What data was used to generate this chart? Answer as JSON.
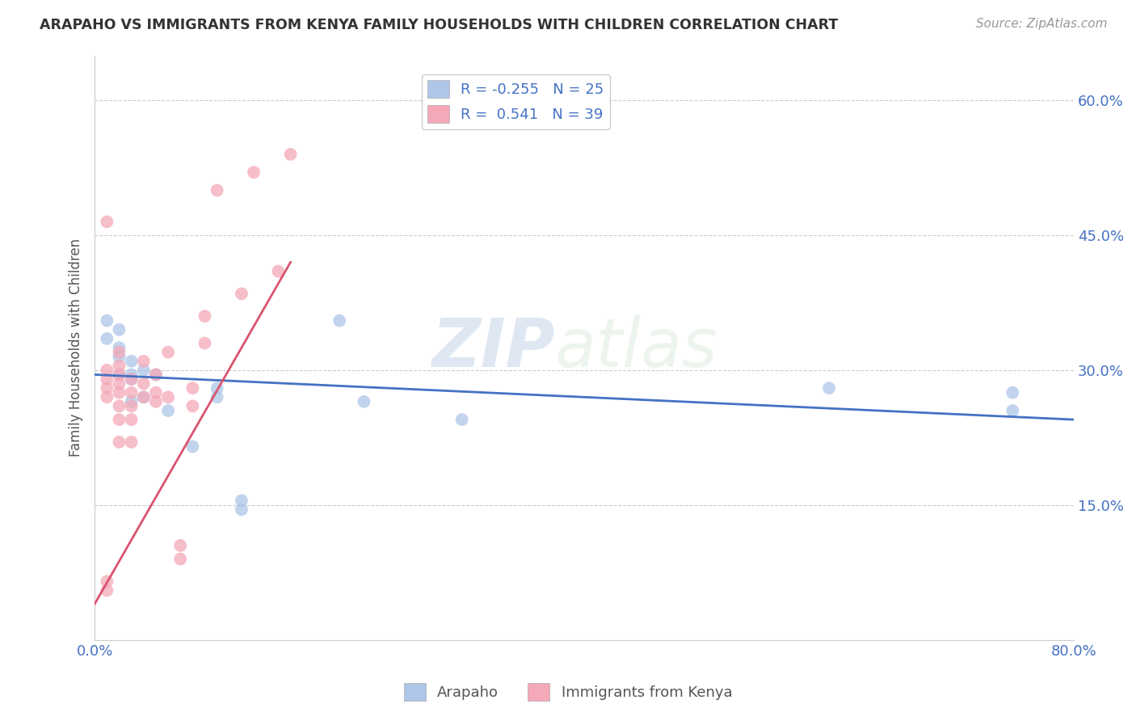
{
  "title": "ARAPAHO VS IMMIGRANTS FROM KENYA FAMILY HOUSEHOLDS WITH CHILDREN CORRELATION CHART",
  "source": "Source: ZipAtlas.com",
  "ylabel": "Family Households with Children",
  "xlabel": "",
  "legend_label1": "Arapaho",
  "legend_label2": "Immigrants from Kenya",
  "r1": -0.255,
  "n1": 25,
  "r2": 0.541,
  "n2": 39,
  "xlim": [
    0.0,
    0.8
  ],
  "ylim": [
    0.0,
    0.65
  ],
  "yticks": [
    0.15,
    0.3,
    0.45,
    0.6
  ],
  "ytick_labels": [
    "15.0%",
    "30.0%",
    "45.0%",
    "60.0%"
  ],
  "xticks": [
    0.0,
    0.1,
    0.2,
    0.3,
    0.4,
    0.5,
    0.6,
    0.7,
    0.8
  ],
  "xtick_labels": [
    "0.0%",
    "",
    "",
    "",
    "",
    "",
    "",
    "",
    "80.0%"
  ],
  "color_blue": "#aec6e8",
  "color_pink": "#f4a8b8",
  "line_color_blue": "#4472c4",
  "line_color_pink": "#d9546e",
  "watermark_zip": "ZIP",
  "watermark_atlas": "atlas",
  "arapaho_x": [
    0.01,
    0.01,
    0.02,
    0.02,
    0.02,
    0.02,
    0.03,
    0.03,
    0.03,
    0.03,
    0.04,
    0.04,
    0.05,
    0.06,
    0.08,
    0.1,
    0.1,
    0.12,
    0.12,
    0.2,
    0.22,
    0.3,
    0.6,
    0.75,
    0.75
  ],
  "arapaho_y": [
    0.335,
    0.355,
    0.295,
    0.315,
    0.325,
    0.345,
    0.265,
    0.29,
    0.295,
    0.31,
    0.27,
    0.3,
    0.295,
    0.255,
    0.215,
    0.28,
    0.27,
    0.155,
    0.145,
    0.355,
    0.265,
    0.245,
    0.28,
    0.275,
    0.255
  ],
  "kenya_x": [
    0.01,
    0.01,
    0.01,
    0.01,
    0.01,
    0.01,
    0.01,
    0.02,
    0.02,
    0.02,
    0.02,
    0.02,
    0.02,
    0.02,
    0.02,
    0.03,
    0.03,
    0.03,
    0.03,
    0.03,
    0.04,
    0.04,
    0.04,
    0.05,
    0.05,
    0.05,
    0.06,
    0.06,
    0.07,
    0.07,
    0.08,
    0.08,
    0.09,
    0.09,
    0.1,
    0.12,
    0.13,
    0.15,
    0.16
  ],
  "kenya_y": [
    0.055,
    0.065,
    0.27,
    0.28,
    0.29,
    0.3,
    0.465,
    0.22,
    0.245,
    0.26,
    0.275,
    0.285,
    0.295,
    0.305,
    0.32,
    0.22,
    0.245,
    0.26,
    0.275,
    0.29,
    0.27,
    0.285,
    0.31,
    0.265,
    0.275,
    0.295,
    0.27,
    0.32,
    0.09,
    0.105,
    0.26,
    0.28,
    0.33,
    0.36,
    0.5,
    0.385,
    0.52,
    0.41,
    0.54
  ],
  "trendline_pink_x0": 0.0,
  "trendline_pink_y0": 0.04,
  "trendline_pink_x1": 0.16,
  "trendline_pink_y1": 0.42,
  "trendline_blue_x0": 0.0,
  "trendline_blue_y0": 0.295,
  "trendline_blue_x1": 0.8,
  "trendline_blue_y1": 0.245
}
